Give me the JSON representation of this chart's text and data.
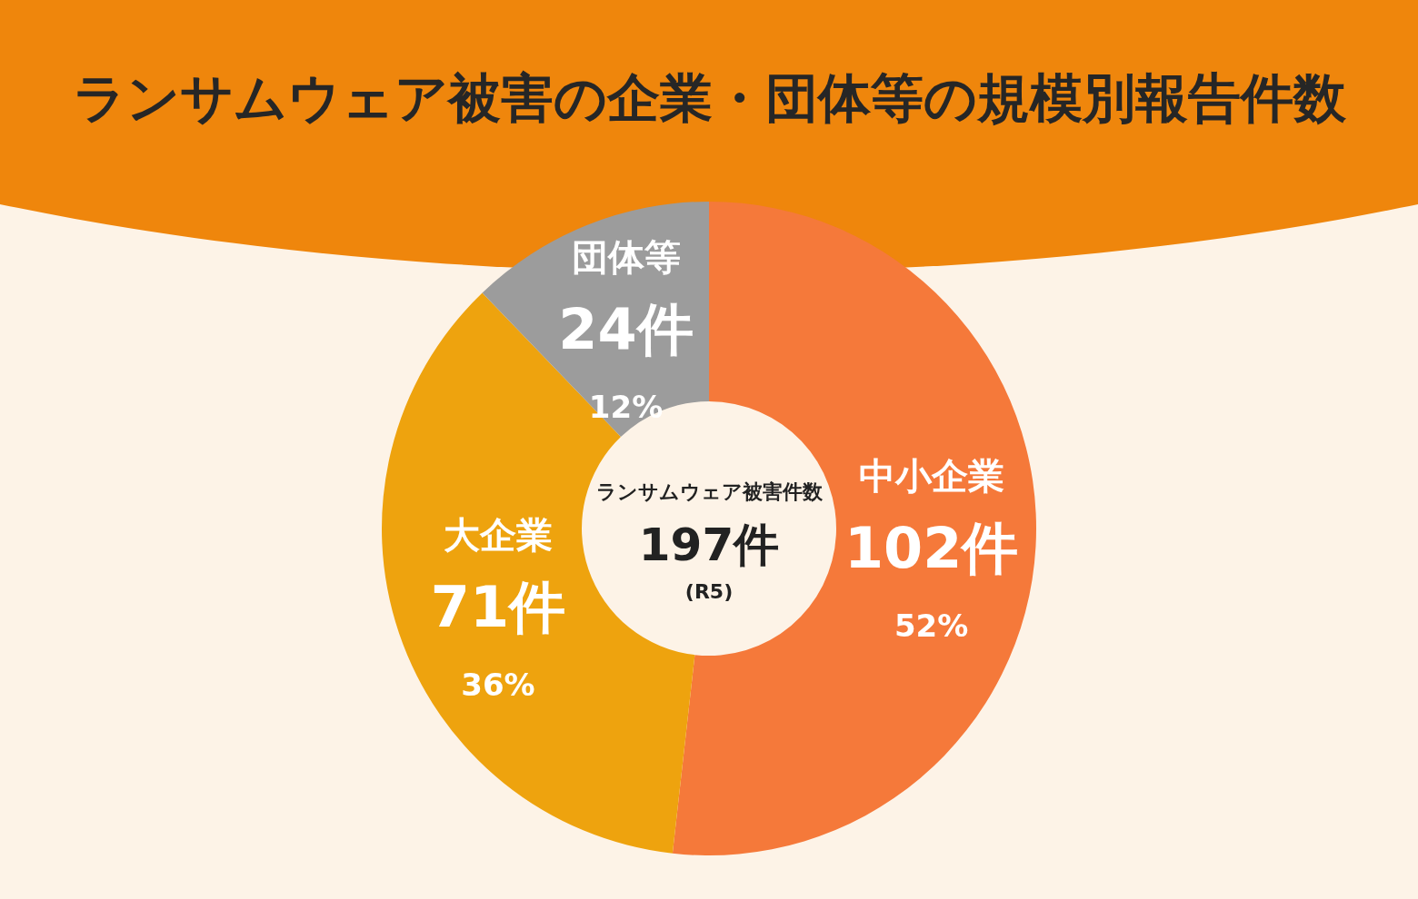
{
  "chart_data": {
    "type": "donut",
    "title": "ランサムウェア被害の企業・団体等の規模別報告件数",
    "categories": [
      "中小企業",
      "大企業",
      "団体等"
    ],
    "values": [
      102,
      71,
      24
    ],
    "colors": [
      "#f5793a",
      "#eea30e",
      "#9c9c9c"
    ],
    "value_labels": [
      "102件",
      "71件",
      "24件"
    ],
    "annotations": [
      "ランサムウェア被害件数",
      "197件",
      "(R5)",
      {
        "text": "52%",
        "x": "中小企業"
      },
      {
        "text": "36%",
        "x": "大企業"
      },
      {
        "text": "12%",
        "x": "団体等"
      }
    ]
  }
}
